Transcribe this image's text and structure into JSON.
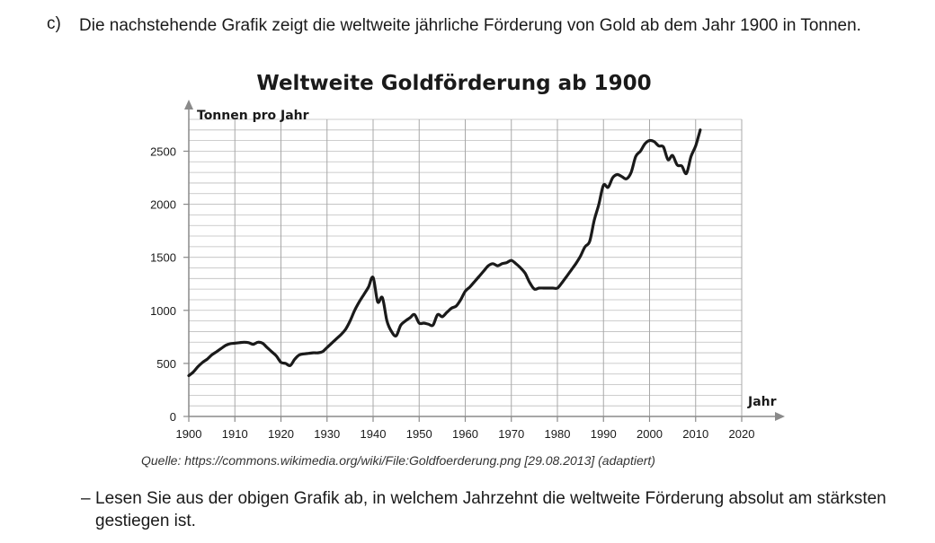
{
  "task": {
    "letter": "c)",
    "text": "Die nachstehende Grafik zeigt die weltweite jährliche Förderung von Gold ab dem Jahr 1900 in Tonnen."
  },
  "source": "Quelle: https://commons.wikimedia.org/wiki/File:Goldfoerderung.png [29.08.2013] (adaptiert)",
  "question": {
    "dash": "–",
    "text": "Lesen Sie aus der obigen Grafik ab, in welchem Jahrzehnt die weltweite Förderung absolut am stärksten gestiegen ist."
  },
  "chart_data": {
    "type": "line",
    "title": "Weltweite Goldförderung ab 1900",
    "xlabel": "Jahr",
    "ylabel": "Tonnen pro Jahr",
    "xlim": [
      1900,
      2020
    ],
    "ylim": [
      0,
      2800
    ],
    "xticks": [
      1900,
      1910,
      1920,
      1930,
      1940,
      1950,
      1960,
      1970,
      1980,
      1990,
      2000,
      2010,
      2020
    ],
    "yticks": [
      0,
      500,
      1000,
      1500,
      2000,
      2500
    ],
    "grid": true,
    "series": [
      {
        "x": [
          1900,
          1901,
          1902,
          1903,
          1904,
          1905,
          1906,
          1907,
          1908,
          1909,
          1910,
          1911,
          1912,
          1913,
          1914,
          1915,
          1916,
          1917,
          1918,
          1919,
          1920,
          1921,
          1922,
          1923,
          1924,
          1925,
          1926,
          1927,
          1928,
          1929,
          1930,
          1931,
          1932,
          1933,
          1934,
          1935,
          1936,
          1937,
          1938,
          1939,
          1940,
          1941,
          1942,
          1943,
          1944,
          1945,
          1946,
          1947,
          1948,
          1949,
          1950,
          1951,
          1952,
          1953,
          1954,
          1955,
          1956,
          1957,
          1958,
          1959,
          1960,
          1961,
          1962,
          1963,
          1964,
          1965,
          1966,
          1967,
          1968,
          1969,
          1970,
          1971,
          1972,
          1973,
          1974,
          1975,
          1976,
          1977,
          1978,
          1979,
          1980,
          1981,
          1982,
          1983,
          1984,
          1985,
          1986,
          1987,
          1988,
          1989,
          1990,
          1991,
          1992,
          1993,
          1994,
          1995,
          1996,
          1997,
          1998,
          1999,
          2000,
          2001,
          2002,
          2003,
          2004,
          2005,
          2006,
          2007,
          2008,
          2009,
          2010,
          2011
        ],
        "y": [
          385,
          420,
          470,
          510,
          540,
          580,
          610,
          640,
          670,
          685,
          690,
          695,
          700,
          695,
          680,
          700,
          690,
          650,
          610,
          570,
          510,
          500,
          480,
          540,
          580,
          590,
          595,
          600,
          600,
          610,
          650,
          690,
          730,
          770,
          820,
          900,
          1000,
          1080,
          1150,
          1220,
          1310,
          1080,
          1120,
          900,
          800,
          760,
          860,
          900,
          930,
          960,
          880,
          880,
          870,
          860,
          960,
          940,
          980,
          1020,
          1040,
          1100,
          1180,
          1220,
          1270,
          1320,
          1370,
          1420,
          1440,
          1420,
          1440,
          1450,
          1470,
          1440,
          1400,
          1350,
          1260,
          1200,
          1210,
          1210,
          1210,
          1210,
          1210,
          1260,
          1320,
          1380,
          1440,
          1510,
          1600,
          1650,
          1850,
          2000,
          2180,
          2160,
          2250,
          2280,
          2260,
          2240,
          2300,
          2450,
          2500,
          2570,
          2600,
          2590,
          2550,
          2540,
          2420,
          2460,
          2370,
          2360,
          2290,
          2450,
          2550,
          2700
        ]
      }
    ]
  }
}
